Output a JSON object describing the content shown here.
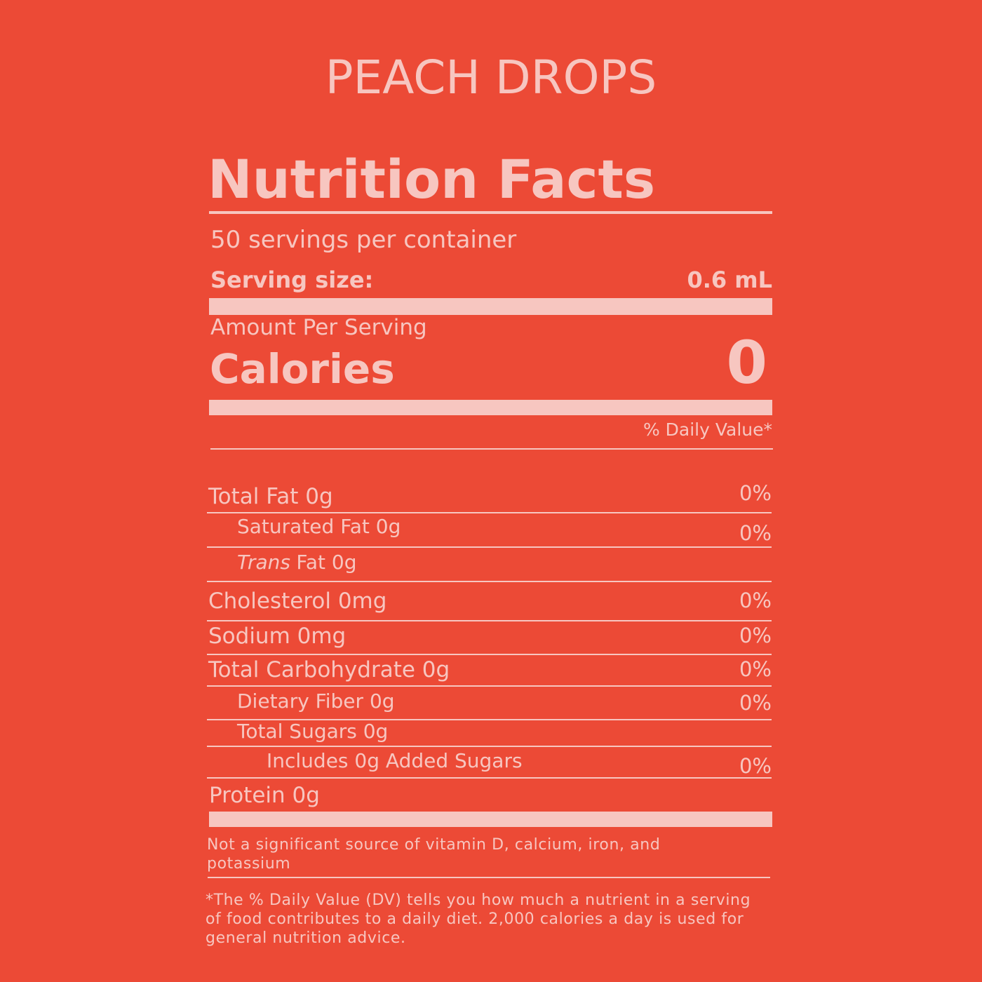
{
  "title": "PEACH DROPS",
  "label": {
    "heading": "Nutrition Facts",
    "servings": "50 servings per container",
    "serving_size": {
      "label": "Serving size:",
      "value": "0.6 mL"
    },
    "amount_per_serving": "Amount Per Serving",
    "calories": {
      "label": "Calories",
      "value": "0"
    },
    "daily_value_header": "% Daily Value*",
    "rows": [
      {
        "label": "Total Fat 0g",
        "dv": "0%"
      },
      {
        "label": "Saturated Fat 0g",
        "dv": "0%"
      },
      {
        "label_italic": "Trans",
        "label": "Fat 0g"
      },
      {
        "label": "Cholesterol 0mg",
        "dv": "0%"
      },
      {
        "label": "Sodium 0mg",
        "dv": "0%"
      },
      {
        "label": "Total Carbohydrate 0g",
        "dv": "0%"
      },
      {
        "label": "Dietary Fiber 0g",
        "dv": "0%"
      },
      {
        "label": "Total Sugars 0g"
      },
      {
        "label": "Includes 0g Added Sugars",
        "dv": "0%"
      },
      {
        "label": "Protein 0g"
      }
    ],
    "note": "Not a significant source of vitamin D, calcium, iron, and potassium",
    "footnote": "*The % Daily Value (DV) tells you how much a nutrient in a serving of food contributes to a daily diet. 2,000 calories a day is used for general nutrition advice."
  }
}
